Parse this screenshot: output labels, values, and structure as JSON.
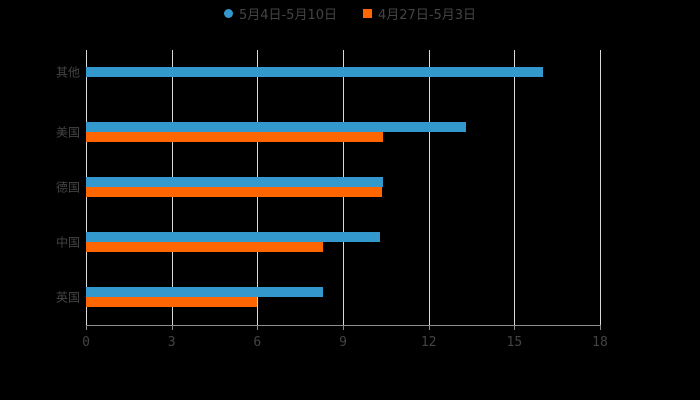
{
  "chart_data": {
    "type": "bar",
    "orientation": "horizontal",
    "categories": [
      "其他",
      "美国",
      "德国",
      "中国",
      "英国"
    ],
    "series": [
      {
        "name": "5月4日-5月10日",
        "color": "#3399cc",
        "values": [
          16.0,
          13.3,
          10.4,
          10.3,
          8.3
        ]
      },
      {
        "name": "4月27日-5月3日",
        "color": "#ff6600",
        "values": [
          null,
          10.4,
          10.35,
          8.3,
          6.0
        ]
      }
    ],
    "xticks": [
      "0",
      "3",
      "6",
      "9",
      "12",
      "15",
      "18"
    ],
    "xlim": [
      0,
      18
    ],
    "grid": true,
    "legend_position": "top",
    "title": "",
    "xlabel": "",
    "ylabel": ""
  },
  "legend": {
    "items": [
      {
        "label": "5月4日-5月10日",
        "color": "#3399cc",
        "shape": "circle"
      },
      {
        "label": "4月27日-5月3日",
        "color": "#ff6600",
        "shape": "square"
      }
    ]
  }
}
